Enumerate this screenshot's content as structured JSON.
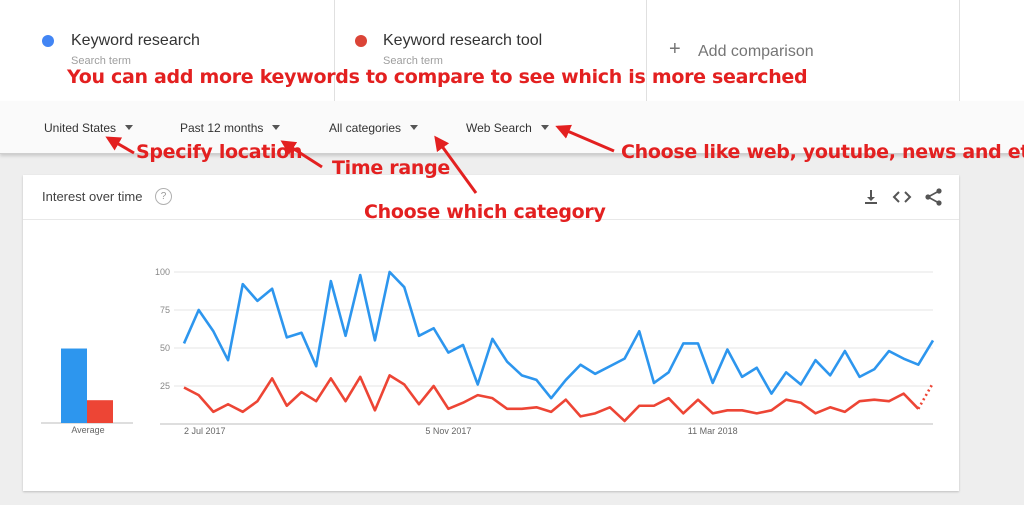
{
  "compare": {
    "terms": [
      {
        "name": "Keyword research",
        "sub": "Search term",
        "color": "#4285f4"
      },
      {
        "name": "Keyword research tool",
        "sub": "Search term",
        "color": "#db4437"
      }
    ],
    "add_label": "Add comparison"
  },
  "filters": {
    "location": "United States",
    "time": "Past 12 months",
    "category": "All categories",
    "search_type": "Web Search"
  },
  "card": {
    "title": "Interest over time",
    "help": "?"
  },
  "icons": {
    "download": "download-icon",
    "embed": "embed-code-icon",
    "share": "share-icon",
    "help": "help-icon",
    "add": "plus-icon"
  },
  "annotations": {
    "compare_note": "You can add more keywords to compare to see which is more searched",
    "location_note": "Specify location",
    "time_note": "Time range",
    "category_note": "Choose which category",
    "search_note": "Choose like web, youtube, news and etc."
  },
  "chart_data": {
    "type": "line",
    "ylim": [
      0,
      100
    ],
    "yticks": [
      25,
      50,
      75,
      100
    ],
    "xtick_labels": [
      "2 Jul 2017",
      "5 Nov 2017",
      "11 Mar 2018"
    ],
    "xtick_index": [
      0,
      18,
      36
    ],
    "average_label": "Average",
    "averages": [
      49,
      15
    ],
    "series": [
      {
        "name": "Keyword research",
        "color": "#2d96ee",
        "values": [
          53,
          75,
          61,
          42,
          92,
          81,
          89,
          57,
          60,
          38,
          94,
          58,
          98,
          55,
          100,
          90,
          58,
          63,
          47,
          52,
          26,
          56,
          41,
          32,
          29,
          17,
          29,
          39,
          33,
          38,
          43,
          61,
          27,
          34,
          53,
          53,
          27,
          49,
          31,
          37,
          20,
          34,
          26,
          42,
          32,
          48,
          31,
          36,
          48,
          43,
          39,
          55
        ]
      },
      {
        "name": "Keyword research tool",
        "color": "#ed4535",
        "values": [
          24,
          19,
          8,
          13,
          8,
          15,
          30,
          12,
          21,
          15,
          30,
          15,
          31,
          9,
          32,
          26,
          13,
          25,
          10,
          14,
          19,
          17,
          10,
          10,
          11,
          8,
          16,
          5,
          7,
          11,
          2,
          12,
          12,
          17,
          7,
          16,
          7,
          9,
          9,
          7,
          9,
          16,
          14,
          7,
          11,
          8,
          15,
          16,
          15,
          20,
          10
        ],
        "partial_last": 27
      }
    ]
  }
}
